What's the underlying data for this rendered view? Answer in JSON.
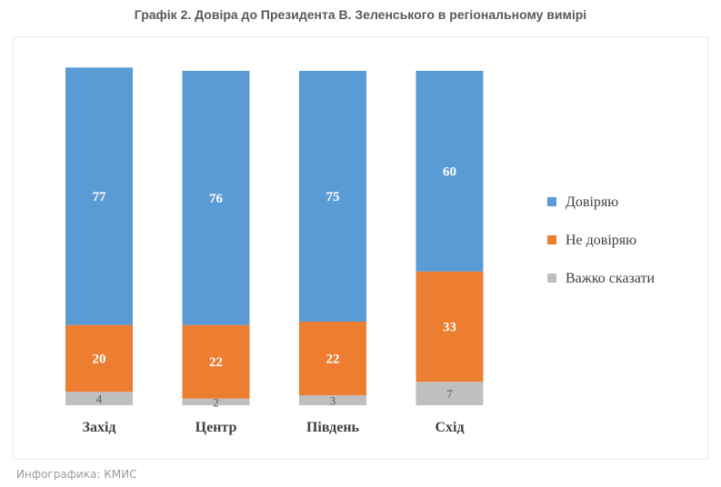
{
  "chart_data": {
    "type": "bar",
    "stacked": true,
    "title": "Графік 2. Довіра до Президента В. Зеленського в регіональному вимірі",
    "categories": [
      "Захід",
      "Центр",
      "Південь",
      "Схід"
    ],
    "series": [
      {
        "name": "Довіряю",
        "values": [
          77,
          76,
          75,
          60
        ],
        "color": "#5b9bd5"
      },
      {
        "name": "Не довіряю",
        "values": [
          20,
          22,
          22,
          33
        ],
        "color": "#ed7d31"
      },
      {
        "name": "Важко сказати",
        "values": [
          4,
          2,
          3,
          7
        ],
        "color": "#bfbfbf"
      }
    ],
    "ylim": [
      0,
      100
    ],
    "grid": false,
    "legend": "right"
  },
  "credit": "Инфографика: КМИС"
}
